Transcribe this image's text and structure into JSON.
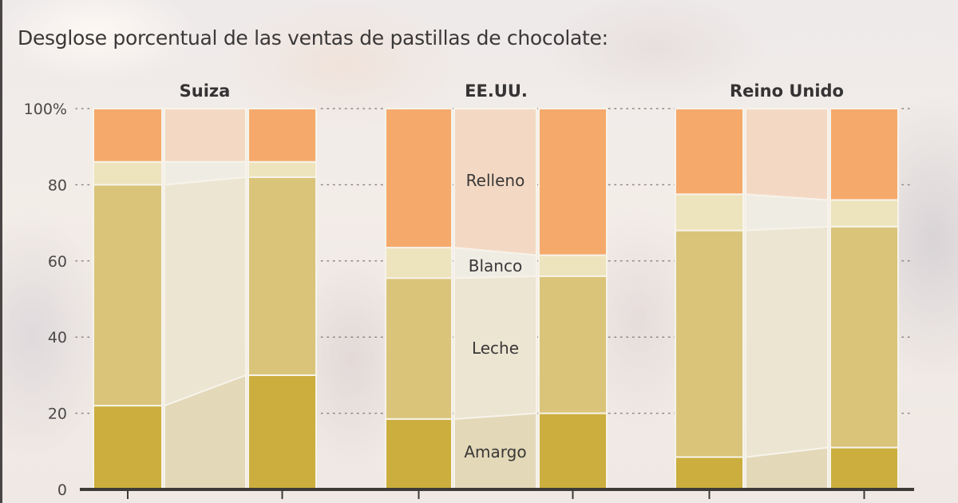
{
  "title": "Desglose porcentual de las ventas de pastillas de chocolate:",
  "colors": {
    "Relleno": "#f5aa6c",
    "Blanco": "#ede3bd",
    "Leche": "#d9c47a",
    "Amargo": "#cbae3e",
    "Relleno_connector": "#f3d9c4",
    "Blanco_connector": "#efece4",
    "Leche_connector": "#ebe5d2",
    "Amargo_connector": "#e3d8b8",
    "axis": "#3d3a38",
    "grid": "#8c8580"
  },
  "chart_data": {
    "type": "bar",
    "stacked": true,
    "title": "Desglose porcentual de las ventas de pastillas de chocolate:",
    "xlabel": "",
    "ylabel": "",
    "ylim": [
      0,
      100
    ],
    "yticks": [
      0,
      20,
      40,
      60,
      80,
      100
    ],
    "ytick_labels": [
      "0",
      "20",
      "40",
      "60",
      "80",
      "100%"
    ],
    "grid": "dotted horizontal",
    "series_order": [
      "Amargo",
      "Leche",
      "Blanco",
      "Relleno"
    ],
    "series_labels": [
      "Relleno",
      "Blanco",
      "Leche",
      "Amargo"
    ],
    "groups": [
      {
        "name": "Suiza",
        "bars": [
          {
            "Amargo": 22,
            "Leche": 58,
            "Blanco": 6,
            "Relleno": 14
          },
          {
            "Amargo": 30,
            "Leche": 52,
            "Blanco": 4,
            "Relleno": 14
          }
        ]
      },
      {
        "name": "EE.UU.",
        "bars": [
          {
            "Amargo": 18.5,
            "Leche": 37,
            "Blanco": 8,
            "Relleno": 36.5
          },
          {
            "Amargo": 20,
            "Leche": 36,
            "Blanco": 5.5,
            "Relleno": 38.5
          }
        ]
      },
      {
        "name": "Reino Unido",
        "bars": [
          {
            "Amargo": 8.5,
            "Leche": 59.5,
            "Blanco": 9.5,
            "Relleno": 22.5
          },
          {
            "Amargo": 11,
            "Leche": 58,
            "Blanco": 7,
            "Relleno": 24
          }
        ]
      }
    ]
  }
}
